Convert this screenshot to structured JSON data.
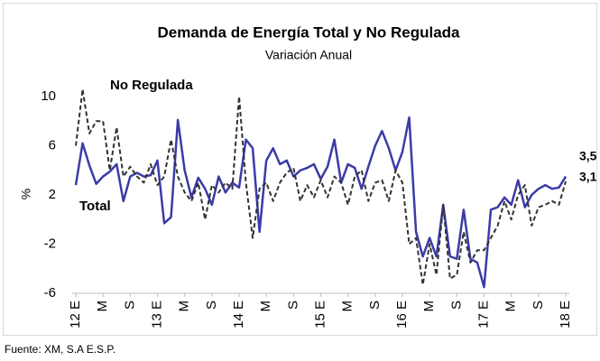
{
  "chart_data": {
    "type": "line",
    "title": "Demanda de Energía Total y No Regulada",
    "subtitle": "Variación Anual",
    "y_label": "%",
    "source": "Fuente: XM, S.A E.S.P.",
    "categories": [
      "12 E",
      null,
      null,
      null,
      "M",
      null,
      null,
      null,
      "S",
      null,
      null,
      null,
      "13 E",
      null,
      null,
      null,
      "M",
      null,
      null,
      null,
      "S",
      null,
      null,
      null,
      "14 E",
      null,
      null,
      null,
      "M",
      null,
      null,
      null,
      "S",
      null,
      null,
      null,
      "15 E",
      null,
      null,
      null,
      "M",
      null,
      null,
      null,
      "S",
      null,
      null,
      null,
      "16 E",
      null,
      null,
      null,
      "M",
      null,
      null,
      null,
      "S",
      null,
      null,
      null,
      "17 E",
      null,
      null,
      null,
      "M",
      null,
      null,
      null,
      "S",
      null,
      null,
      null,
      "18 E"
    ],
    "ylim": [
      -6,
      12
    ],
    "yticks": [
      -6,
      -2,
      2,
      6,
      10
    ],
    "series": [
      {
        "name": "Total",
        "color": "#3b3ba8",
        "dash": false,
        "values": [
          2.8,
          6.2,
          4.4,
          2.9,
          3.5,
          3.9,
          4.5,
          1.5,
          3.5,
          3.8,
          3.5,
          3.6,
          4.8,
          -0.3,
          0.2,
          8.1,
          4.0,
          1.8,
          3.4,
          2.5,
          1.2,
          3.5,
          2.2,
          3.0,
          2.6,
          6.5,
          5.8,
          -1.0,
          4.8,
          5.8,
          4.5,
          4.8,
          3.5,
          4.0,
          4.2,
          4.5,
          3.3,
          4.3,
          6.5,
          3.0,
          4.5,
          4.2,
          2.5,
          4.3,
          6.0,
          7.2,
          5.8,
          4.0,
          5.5,
          8.3,
          -1.0,
          -3.0,
          -1.5,
          -3.0,
          1.2,
          -3.0,
          -3.2,
          0.8,
          -3.2,
          -3.5,
          -5.5,
          0.8,
          1.0,
          1.8,
          1.2,
          3.2,
          1.0,
          2.0,
          2.5,
          2.8,
          2.5,
          2.6,
          3.5
        ],
        "value_labels": [
          null,
          null,
          null,
          null,
          null,
          null,
          null,
          null,
          null,
          null,
          null,
          null,
          null,
          null,
          null,
          null,
          null,
          null,
          null,
          null,
          null,
          null,
          null,
          null,
          null,
          null,
          null,
          null,
          null,
          null,
          null,
          null,
          null,
          null,
          null,
          null,
          null,
          null,
          null,
          null,
          null,
          null,
          null,
          null,
          null,
          null,
          null,
          null,
          null,
          null,
          null,
          null,
          null,
          null,
          null,
          null,
          null,
          null,
          null,
          null,
          null,
          null,
          null,
          null,
          null,
          null,
          null,
          null,
          null,
          null,
          null,
          null,
          "3,5"
        ]
      },
      {
        "name": "No Regulada",
        "color": "#333333",
        "label_color": "#8c8c8c",
        "dash": true,
        "values": [
          6.0,
          10.6,
          7.0,
          8.0,
          8.0,
          4.0,
          7.5,
          3.5,
          4.3,
          3.5,
          3.0,
          4.5,
          2.8,
          3.5,
          6.5,
          3.5,
          2.2,
          1.5,
          3.0,
          0.0,
          2.8,
          2.2,
          3.0,
          2.5,
          10.0,
          3.0,
          -1.5,
          2.5,
          3.0,
          1.5,
          3.0,
          3.8,
          4.2,
          1.5,
          2.8,
          1.8,
          3.2,
          1.8,
          3.5,
          3.0,
          1.2,
          3.5,
          4.0,
          1.5,
          3.0,
          3.2,
          1.5,
          4.0,
          3.0,
          -2.0,
          -1.5,
          -5.3,
          -2.0,
          -4.5,
          1.2,
          -4.8,
          -4.5,
          -1.0,
          -3.5,
          -2.5,
          -2.5,
          -1.5,
          -0.5,
          1.5,
          0.0,
          2.0,
          2.8,
          -0.5,
          1.0,
          1.2,
          1.5,
          1.2,
          3.1
        ],
        "value_labels": [
          null,
          null,
          null,
          null,
          null,
          null,
          null,
          null,
          null,
          null,
          null,
          null,
          null,
          null,
          null,
          null,
          null,
          null,
          null,
          null,
          null,
          null,
          null,
          null,
          null,
          null,
          null,
          null,
          null,
          null,
          null,
          null,
          null,
          null,
          null,
          null,
          null,
          null,
          null,
          null,
          null,
          null,
          null,
          null,
          null,
          null,
          null,
          null,
          null,
          null,
          null,
          null,
          null,
          null,
          null,
          null,
          null,
          null,
          null,
          null,
          null,
          null,
          null,
          null,
          null,
          null,
          null,
          null,
          null,
          null,
          null,
          null,
          "3,1"
        ]
      }
    ]
  }
}
